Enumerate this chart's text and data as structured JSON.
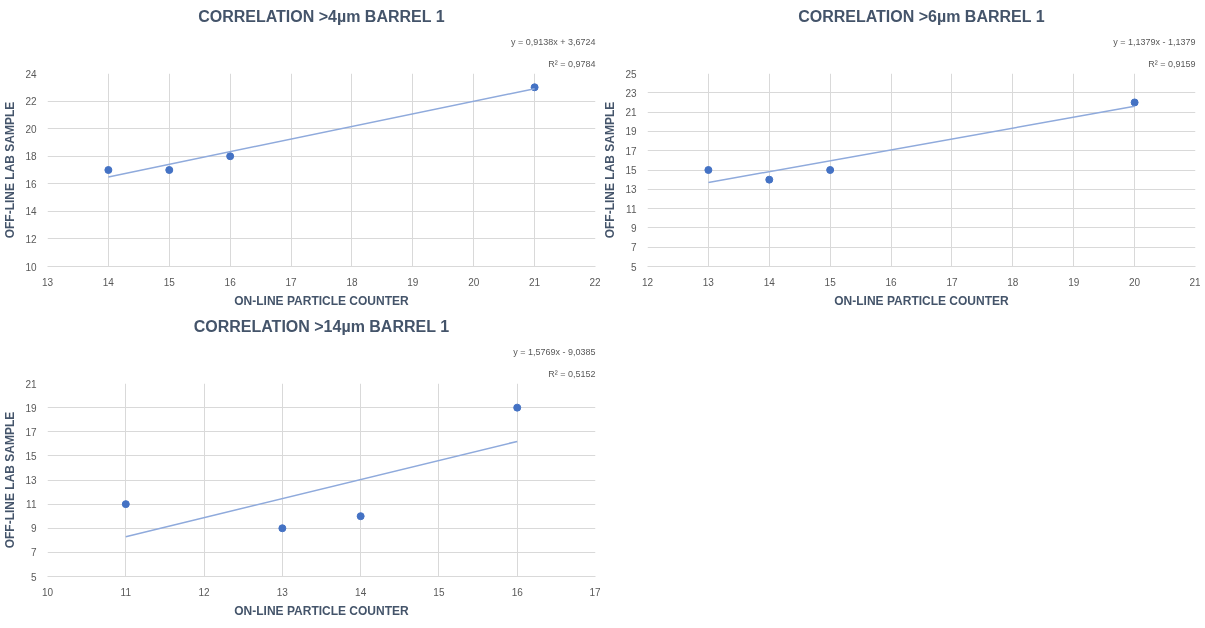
{
  "chart_data": [
    {
      "type": "scatter",
      "title": "CORRELATION >4µm BARREL 1",
      "xlabel": "ON-LINE PARTICLE COUNTER",
      "ylabel": "OFF-LINE LAB SAMPLE",
      "annotations": [
        "y = 0,9138x + 3,6724",
        "R² = 0,9784"
      ],
      "x": [
        14,
        15,
        16,
        21
      ],
      "xlim": [
        13,
        22
      ],
      "ylim": [
        10,
        24
      ],
      "xticks": [
        13,
        14,
        15,
        16,
        17,
        18,
        19,
        20,
        21,
        22
      ],
      "yticks": [
        10,
        12,
        14,
        16,
        18,
        20,
        22,
        24
      ],
      "grid": true,
      "marker": "circle",
      "series": [
        {
          "color": "#4472c4",
          "values": [
            17,
            17,
            18,
            23
          ]
        },
        {
          "type": "line",
          "color": "#8faadc",
          "x": [
            14,
            21
          ],
          "values": [
            16.5,
            22.9
          ],
          "marker": "none",
          "line_style": "solid"
        }
      ]
    },
    {
      "type": "scatter",
      "title": "CORRELATION >6µm BARREL 1",
      "xlabel": "ON-LINE PARTICLE COUNTER",
      "ylabel": "OFF-LINE LAB SAMPLE",
      "annotations": [
        "y = 1,1379x - 1,1379",
        "R² = 0,9159"
      ],
      "x": [
        13,
        14,
        15,
        20
      ],
      "xlim": [
        12,
        21
      ],
      "ylim": [
        5,
        25
      ],
      "xticks": [
        12,
        13,
        14,
        15,
        16,
        17,
        18,
        19,
        20,
        21
      ],
      "yticks": [
        5,
        7,
        9,
        11,
        13,
        15,
        17,
        19,
        21,
        23,
        25
      ],
      "grid": true,
      "marker": "circle",
      "series": [
        {
          "color": "#4472c4",
          "values": [
            15,
            14,
            15,
            22
          ]
        },
        {
          "type": "line",
          "color": "#8faadc",
          "x": [
            13,
            20
          ],
          "values": [
            13.7,
            21.6
          ],
          "marker": "none",
          "line_style": "solid"
        }
      ]
    },
    {
      "type": "scatter",
      "title": "CORRELATION >14µm BARREL 1",
      "xlabel": "ON-LINE PARTICLE COUNTER",
      "ylabel": "OFF-LINE LAB SAMPLE",
      "annotations": [
        "y = 1,5769x - 9,0385",
        "R² = 0,5152"
      ],
      "x": [
        11,
        13,
        14,
        16
      ],
      "xlim": [
        10,
        17
      ],
      "ylim": [
        5,
        21
      ],
      "xticks": [
        10,
        11,
        12,
        13,
        14,
        15,
        16,
        17
      ],
      "yticks": [
        5,
        7,
        9,
        11,
        13,
        15,
        17,
        19,
        21
      ],
      "grid": true,
      "marker": "circle",
      "series": [
        {
          "color": "#4472c4",
          "values": [
            11,
            9,
            10,
            19
          ]
        },
        {
          "type": "line",
          "color": "#8faadc",
          "x": [
            11,
            16
          ],
          "values": [
            8.3,
            16.2
          ],
          "marker": "none",
          "line_style": "solid"
        }
      ]
    }
  ]
}
